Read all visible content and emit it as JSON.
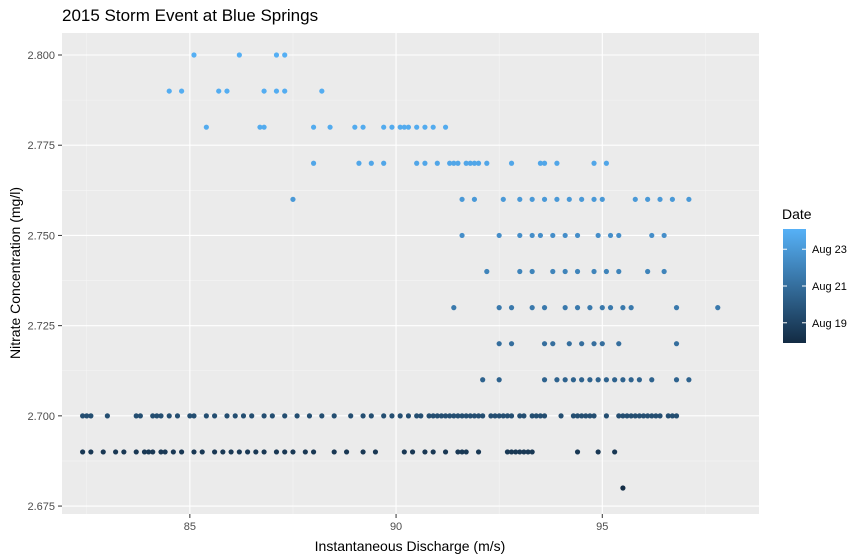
{
  "chart_data": {
    "type": "scatter",
    "title": "2015 Storm Event at Blue Springs",
    "xlabel": "Instantaneous Discharge (m/s)",
    "ylabel": "Nitrate Concentration (mg/l)",
    "xlim": [
      81.9,
      98.8
    ],
    "ylim": [
      2.6728,
      2.8061
    ],
    "xticks": [
      85,
      90,
      95
    ],
    "xtick_labels": [
      "85",
      "90",
      "95"
    ],
    "yticks": [
      2.675,
      2.7,
      2.725,
      2.75,
      2.775,
      2.8
    ],
    "ytick_labels": [
      "2.675",
      "2.700",
      "2.725",
      "2.750",
      "2.775",
      "2.800"
    ],
    "grid": true,
    "legend": {
      "title": "Date",
      "placement": "right",
      "type": "colorbar",
      "labels": [
        "Aug 23",
        "Aug 21",
        "Aug 19"
      ],
      "label_values": [
        23,
        21,
        19
      ],
      "range": [
        17.9,
        24.1
      ],
      "color_low": "#132b43",
      "color_high": "#56b1f7"
    },
    "colors": {
      "low": "#132b43",
      "high": "#56b1f7",
      "panel": "#ebebeb",
      "grid": "#ffffff"
    },
    "point_groups": [
      {
        "y": 2.8,
        "t": 24.0,
        "x": [
          85.1,
          86.2,
          87.1,
          87.3
        ]
      },
      {
        "y": 2.79,
        "t": 23.9,
        "x": [
          84.5,
          84.8,
          85.7,
          85.9,
          86.8,
          87.1,
          87.3,
          88.2
        ]
      },
      {
        "y": 2.78,
        "t": 23.8,
        "x": [
          85.4,
          86.7,
          86.8,
          88.0,
          88.4,
          89.0,
          89.2,
          89.7,
          89.9,
          90.1,
          90.2,
          90.3,
          90.5,
          90.7,
          90.9,
          91.2
        ]
      },
      {
        "y": 2.77,
        "t": 23.6,
        "x": [
          88.0,
          89.1,
          89.4,
          89.7,
          90.5,
          90.7,
          91.0,
          91.3,
          91.4,
          91.5,
          91.7,
          91.8,
          91.9,
          92.0,
          92.2,
          92.8,
          93.5,
          93.6,
          93.9,
          94.8,
          95.1
        ]
      },
      {
        "y": 2.76,
        "t": 23.0,
        "x": [
          87.5,
          91.6,
          91.9,
          92.6,
          93.0,
          93.3,
          93.6,
          93.9,
          94.2,
          94.5,
          94.8,
          95.0,
          95.8,
          96.1,
          96.4,
          96.7,
          97.1
        ]
      },
      {
        "y": 2.75,
        "t": 22.5,
        "x": [
          91.6,
          92.5,
          93.0,
          93.3,
          93.5,
          93.8,
          94.1,
          94.4,
          94.9,
          95.2,
          95.4,
          96.2,
          96.5
        ]
      },
      {
        "y": 2.74,
        "t": 22.0,
        "x": [
          92.2,
          93.0,
          93.3,
          93.8,
          94.1,
          94.4,
          94.8,
          95.1,
          95.4,
          96.1,
          96.5
        ]
      },
      {
        "y": 2.73,
        "t": 21.5,
        "x": [
          91.4,
          92.5,
          92.8,
          93.3,
          93.6,
          94.1,
          94.4,
          94.7,
          95.0,
          95.2,
          95.5,
          95.7,
          96.8,
          97.8
        ]
      },
      {
        "y": 2.72,
        "t": 21.0,
        "x": [
          92.5,
          92.8,
          93.6,
          93.8,
          94.2,
          94.5,
          94.8,
          95.0,
          95.4,
          96.8
        ]
      },
      {
        "y": 2.71,
        "t": 20.5,
        "x": [
          92.1,
          92.5,
          93.6,
          93.9,
          94.1,
          94.3,
          94.5,
          94.7,
          94.9,
          95.1,
          95.3,
          95.5,
          95.7,
          95.9,
          96.2,
          96.8,
          97.1
        ]
      },
      {
        "y": 2.7,
        "t": 19.5,
        "x": [
          82.4,
          82.5,
          82.6,
          83.0,
          83.7,
          83.8,
          84.1,
          84.2,
          84.3,
          84.5,
          84.7,
          85.0,
          85.1,
          85.4,
          85.6,
          85.9,
          86.1,
          86.3,
          86.5,
          86.8,
          87.0,
          87.3,
          87.6,
          87.9,
          88.2,
          88.5,
          88.9,
          89.2,
          89.4,
          89.7,
          89.9,
          90.1,
          90.3,
          90.5,
          90.6,
          90.8,
          90.9,
          91.0,
          91.1,
          91.2,
          91.3,
          91.4,
          91.5,
          91.6,
          91.7,
          91.8,
          91.9,
          92.0,
          92.1,
          92.3,
          92.4,
          92.5,
          92.6,
          92.7,
          92.8,
          93.0,
          93.1,
          93.3,
          93.4,
          93.5,
          93.6,
          94.0,
          94.3,
          94.4,
          94.5,
          94.6,
          94.7,
          94.8,
          95.1,
          95.4,
          95.5,
          95.6,
          95.7,
          95.8,
          95.9,
          96.0,
          96.1,
          96.2,
          96.3,
          96.4,
          96.6,
          96.7,
          96.8
        ]
      },
      {
        "y": 2.69,
        "t": 18.5,
        "x": [
          82.4,
          82.6,
          82.9,
          83.2,
          83.4,
          83.7,
          83.9,
          84.0,
          84.1,
          84.3,
          84.4,
          84.6,
          84.8,
          85.1,
          85.3,
          85.6,
          85.8,
          86.0,
          86.2,
          86.4,
          86.6,
          86.8,
          87.1,
          87.3,
          87.5,
          87.8,
          88.0,
          88.5,
          88.8,
          89.2,
          89.5,
          90.2,
          90.4,
          90.7,
          90.9,
          91.2,
          91.5,
          91.6,
          91.7,
          92.0,
          92.7,
          92.8,
          92.9,
          93.0,
          93.1,
          93.2,
          93.3,
          94.4,
          94.9,
          95.3
        ]
      },
      {
        "y": 2.68,
        "t": 18.0,
        "x": [
          95.5
        ]
      }
    ]
  }
}
